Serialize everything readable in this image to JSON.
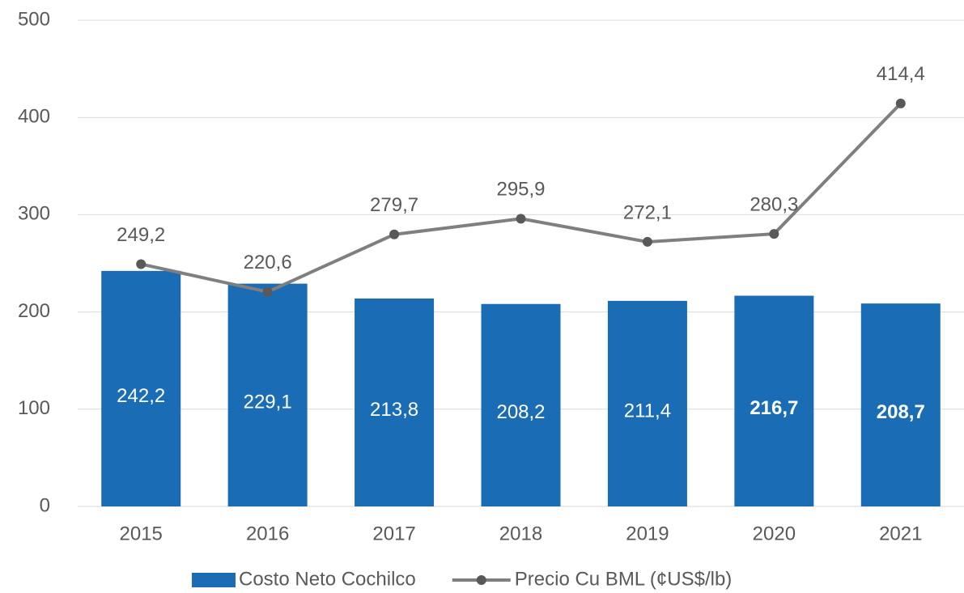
{
  "chart_data": {
    "type": "bar-line",
    "categories": [
      "2015",
      "2016",
      "2017",
      "2018",
      "2019",
      "2020",
      "2021"
    ],
    "series": [
      {
        "name": "Costo Neto Cochilco",
        "type": "bar",
        "color": "#1a6db5",
        "values": [
          242.2,
          229.1,
          213.8,
          208.2,
          211.4,
          216.7,
          208.7
        ],
        "value_labels": [
          "242,2",
          "229,1",
          "213,8",
          "208,2",
          "211,4",
          "216,7",
          "208,7"
        ],
        "label_bold": [
          false,
          false,
          false,
          false,
          false,
          true,
          true
        ]
      },
      {
        "name": "Precio Cu BML (¢US$/lb)",
        "type": "line",
        "color": "#7f7f7f",
        "marker_color": "#595959",
        "values": [
          249.2,
          220.6,
          279.7,
          295.9,
          272.1,
          280.3,
          414.4
        ],
        "value_labels": [
          "249,2",
          "220,6",
          "279,7",
          "295,9",
          "272,1",
          "280,3",
          "414,4"
        ]
      }
    ],
    "ylim": [
      0,
      500
    ],
    "yticks": [
      0,
      100,
      200,
      300,
      400,
      500
    ],
    "grid": true,
    "legend": "bottom"
  }
}
